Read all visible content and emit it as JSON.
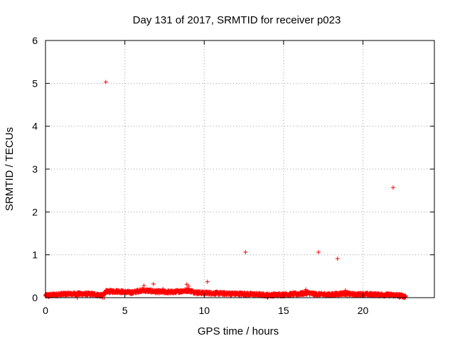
{
  "chart_data": {
    "type": "scatter",
    "title": "Day 131 of 2017, SRMTID for receiver p023",
    "xlabel": "GPS time / hours",
    "ylabel": "SRMTID / TECUs",
    "xlim": [
      0,
      24.5
    ],
    "ylim": [
      0,
      6
    ],
    "xticks": [
      0,
      5,
      10,
      15,
      20
    ],
    "yticks": [
      0,
      1,
      2,
      3,
      4,
      5,
      6
    ],
    "xtick_labels": [
      "0",
      "5",
      "10",
      "15",
      "20"
    ],
    "ytick_labels": [
      "0",
      "1",
      "2",
      "3",
      "4",
      "5",
      "6"
    ],
    "grid": true,
    "marker": "+",
    "marker_color": "#ff0000",
    "series": [
      {
        "name": "SRMTID",
        "dense_band": {
          "x_start": 0.0,
          "x_end": 22.7,
          "baseline": [
            [
              0.0,
              0.05
            ],
            [
              1.0,
              0.08
            ],
            [
              2.0,
              0.09
            ],
            [
              3.0,
              0.08
            ],
            [
              3.6,
              0.05
            ],
            [
              3.8,
              0.14
            ],
            [
              4.5,
              0.15
            ],
            [
              5.0,
              0.13
            ],
            [
              5.5,
              0.12
            ],
            [
              6.0,
              0.17
            ],
            [
              6.5,
              0.16
            ],
            [
              7.0,
              0.14
            ],
            [
              8.0,
              0.13
            ],
            [
              9.0,
              0.17
            ],
            [
              9.5,
              0.12
            ],
            [
              10.0,
              0.11
            ],
            [
              11.0,
              0.1
            ],
            [
              12.0,
              0.09
            ],
            [
              13.0,
              0.08
            ],
            [
              14.0,
              0.06
            ],
            [
              15.0,
              0.07
            ],
            [
              16.0,
              0.09
            ],
            [
              16.5,
              0.11
            ],
            [
              17.0,
              0.08
            ],
            [
              18.0,
              0.07
            ],
            [
              18.8,
              0.1
            ],
            [
              19.5,
              0.07
            ],
            [
              20.0,
              0.08
            ],
            [
              21.0,
              0.07
            ],
            [
              22.0,
              0.06
            ],
            [
              22.5,
              0.04
            ],
            [
              22.7,
              0.03
            ]
          ]
        },
        "points": [
          [
            3.8,
            5.03
          ],
          [
            12.6,
            1.06
          ],
          [
            17.2,
            1.06
          ],
          [
            18.4,
            0.91
          ],
          [
            21.9,
            2.57
          ],
          [
            10.2,
            0.37
          ],
          [
            6.2,
            0.28
          ],
          [
            6.8,
            0.32
          ],
          [
            8.9,
            0.31
          ],
          [
            9.0,
            0.27
          ],
          [
            7.4,
            0.2
          ],
          [
            16.4,
            0.19
          ],
          [
            18.9,
            0.17
          ],
          [
            0.2,
            0.02
          ],
          [
            3.6,
            0.0
          ],
          [
            3.7,
            0.0
          ],
          [
            2.0,
            0.0
          ],
          [
            14.0,
            0.0
          ],
          [
            22.3,
            0.0
          ],
          [
            22.6,
            0.0
          ]
        ]
      }
    ]
  }
}
